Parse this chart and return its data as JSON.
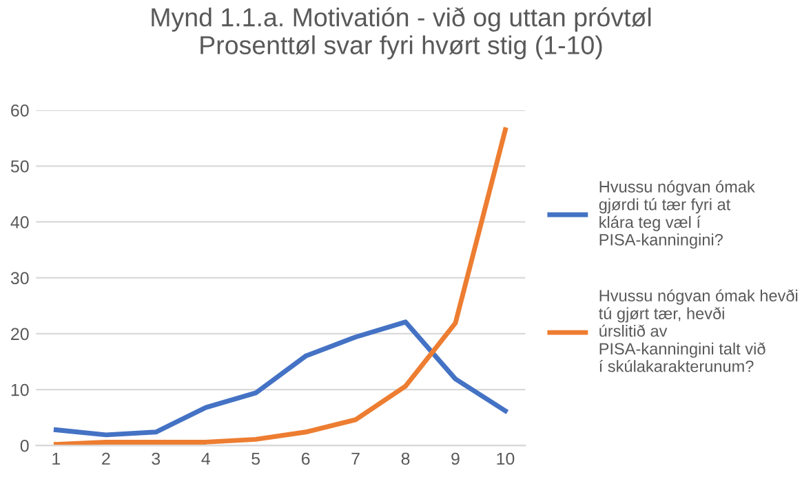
{
  "chart_data": {
    "type": "line",
    "title": "Mynd 1.1.a. Motivatión - við og uttan próvtøl\nProsenttøl svar fyri hvørt stig (1-10)",
    "categories": [
      "1",
      "2",
      "3",
      "4",
      "5",
      "6",
      "7",
      "8",
      "9",
      "10"
    ],
    "series": [
      {
        "name": "Hvussu nógvan ómak gjørdi tú tær fyri at klára teg væl í PISA-kanningini?",
        "color": "#4472c4",
        "values": [
          2.8,
          1.9,
          2.4,
          6.8,
          9.4,
          16.0,
          19.4,
          22.1,
          11.9,
          6.2
        ]
      },
      {
        "name": "Hvussu nógvan ómak hevði tú gjørt tær, hevði úrslitið av PISA-kanningini talt við í skúlakarakterunum?",
        "color": "#ed7d31",
        "values": [
          0.2,
          0.6,
          0.6,
          0.6,
          1.1,
          2.4,
          4.6,
          10.6,
          21.9,
          56.5
        ]
      }
    ],
    "ylim": [
      0,
      60
    ],
    "yticks": [
      0,
      10,
      20,
      30,
      40,
      50,
      60
    ],
    "grid": "y",
    "legend": "right",
    "marker": "none",
    "line_style": "solid"
  }
}
